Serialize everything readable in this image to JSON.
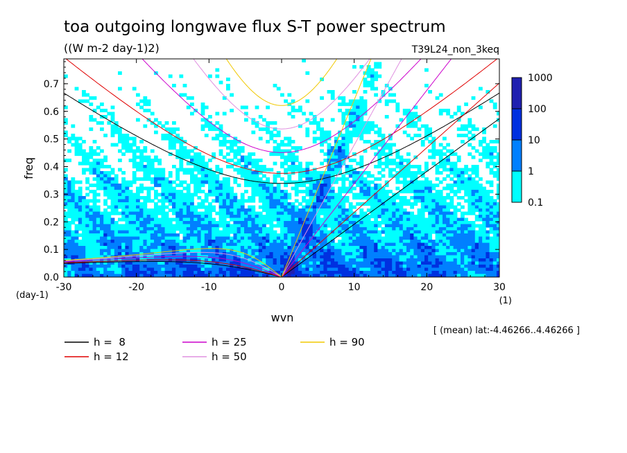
{
  "header": {
    "title": "toa outgoing longwave flux S-T power spectrum",
    "units": "((W m-2 day-1)2)",
    "run": "T39L24_non_3keq"
  },
  "axes": {
    "xlabel": "wvn",
    "ylabel": "freq",
    "x_unit": "(1)",
    "y_unit": "(day-1)"
  },
  "footer": {
    "region": "[ (mean) lat:-4.46266..4.46266 ]"
  },
  "colorbar": {
    "levels": [
      "0.1",
      "1",
      "10",
      "100",
      "1000"
    ],
    "colors": [
      "#00ffff",
      "#0080ff",
      "#0030e0",
      "#2020b0"
    ]
  },
  "chart_data": {
    "type": "heatmap",
    "title": "toa outgoing longwave flux S-T power spectrum",
    "xlabel": "wvn",
    "ylabel": "freq",
    "xlim": [
      -30,
      30
    ],
    "ylim": [
      0,
      0.79
    ],
    "xticks": [
      "-30",
      "-20",
      "-10",
      "0",
      "10",
      "20",
      "30"
    ],
    "yticks": [
      "0.0",
      "0.1",
      "0.2",
      "0.3",
      "0.4",
      "0.5",
      "0.6",
      "0.7"
    ],
    "colorbar_levels": [
      0.1,
      1,
      10,
      100,
      1000
    ],
    "dispersion_curves": [
      {
        "name": "h =  8",
        "color": "#000000",
        "h": 8
      },
      {
        "name": "h = 12",
        "color": "#e00000",
        "h": 12
      },
      {
        "name": "h = 25",
        "color": "#cc00cc",
        "h": 25
      },
      {
        "name": "h = 50",
        "color": "#e090e0",
        "h": 50
      },
      {
        "name": "h = 90",
        "color": "#f0c800",
        "h": 90
      }
    ]
  }
}
